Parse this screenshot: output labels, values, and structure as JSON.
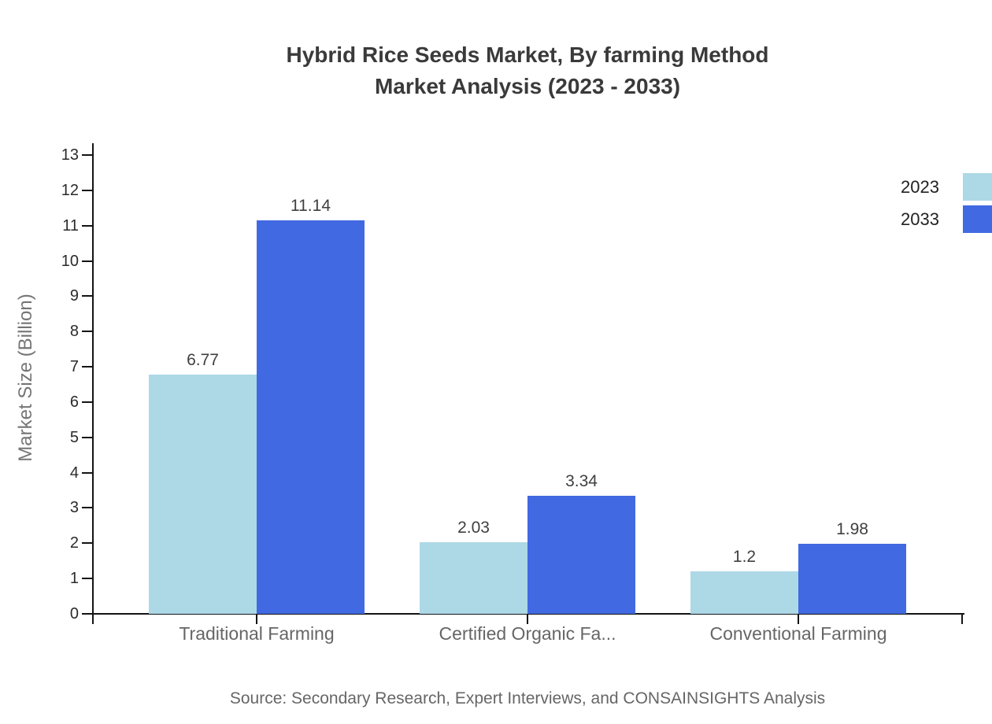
{
  "title": {
    "line1": "Hybrid Rice Seeds Market, By farming Method",
    "line2": "Market Analysis (2023 - 2033)"
  },
  "legend": [
    {
      "label": "2023",
      "color": "#add8e6"
    },
    {
      "label": "2033",
      "color": "#4169e1"
    }
  ],
  "axis": {
    "y_label": "Market Size (Billion)",
    "y_ticks": [
      0,
      1,
      2,
      3,
      4,
      5,
      6,
      7,
      8,
      9,
      10,
      11,
      12,
      13
    ]
  },
  "source": "Source: Secondary Research, Expert Interviews, and CONSAINSIGHTS Analysis",
  "chart_data": {
    "type": "bar",
    "categories": [
      "Traditional Farming",
      "Certified Organic Fa...",
      "Conventional Farming"
    ],
    "series": [
      {
        "name": "2023",
        "color": "#add8e6",
        "values": [
          6.77,
          2.03,
          1.2
        ]
      },
      {
        "name": "2033",
        "color": "#4169e1",
        "values": [
          11.14,
          3.34,
          1.98
        ]
      }
    ],
    "title": "Hybrid Rice Seeds Market, By farming Method Market Analysis (2023 - 2033)",
    "xlabel": "",
    "ylabel": "Market Size (Billion)",
    "ylim": [
      0,
      13
    ],
    "grid": false,
    "legend_position": "top-right"
  }
}
